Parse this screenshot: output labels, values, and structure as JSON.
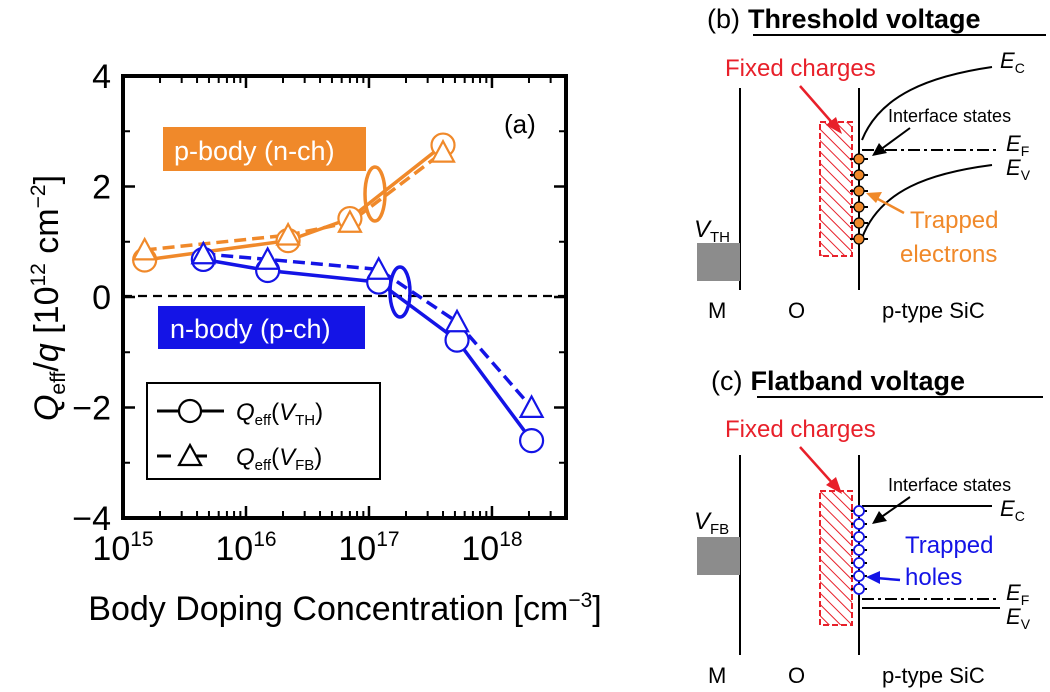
{
  "colors": {
    "orange": "#F0892A",
    "blue": "#1414E6",
    "red": "#E8202A",
    "gray": "#8C8C8C",
    "black": "#000000"
  },
  "chart_data": {
    "type": "line",
    "panel_label": "(a)",
    "xlabel": "Body Doping Concentration [cm",
    "xlabel_sup": "−3",
    "xlabel_end": "]",
    "ylabel": {
      "q": "Q",
      "eff": "eff",
      "slash": "/",
      "qq": "q",
      "units": " [10",
      "exp": "12",
      "cm": " cm",
      "cmexp": "−2",
      "close": "]"
    },
    "x_scale": "log",
    "xlim": [
      1000000000000000.0,
      4e+18
    ],
    "ylim": [
      -4,
      4
    ],
    "x_ticks": [
      {
        "value": 1000000000000000.0,
        "base": "10",
        "exp": "15"
      },
      {
        "value": 1e+16,
        "base": "10",
        "exp": "16"
      },
      {
        "value": 1e+17,
        "base": "10",
        "exp": "17"
      },
      {
        "value": 1e+18,
        "base": "10",
        "exp": "18"
      }
    ],
    "y_ticks": [
      {
        "value": 4,
        "label": "4"
      },
      {
        "value": 2,
        "label": "2"
      },
      {
        "value": 0,
        "label": "0"
      },
      {
        "value": -2,
        "label": "−2"
      },
      {
        "value": -4,
        "label": "−4"
      }
    ],
    "zero_line": true,
    "series": [
      {
        "name": "p-body Qeff(VTH)",
        "group": "p-body",
        "style": "solid",
        "marker": "circle",
        "x": [
          1500000000000000.0,
          2.2e+16,
          7e+16,
          4e+17
        ],
        "y": [
          0.67,
          1.02,
          1.42,
          2.75
        ]
      },
      {
        "name": "p-body Qeff(VFB)",
        "group": "p-body",
        "style": "dashed",
        "marker": "triangle",
        "x": [
          1500000000000000.0,
          2.2e+16,
          7e+16,
          4e+17
        ],
        "y": [
          0.85,
          1.12,
          1.35,
          2.62
        ]
      },
      {
        "name": "n-body Qeff(VTH)",
        "group": "n-body",
        "style": "solid",
        "marker": "circle",
        "x": [
          4500000000000000.0,
          1.5e+16,
          1.2e+17,
          5.2e+17,
          2.1e+18
        ],
        "y": [
          0.68,
          0.48,
          0.27,
          -0.78,
          -2.6
        ]
      },
      {
        "name": "n-body Qeff(VFB)",
        "group": "n-body",
        "style": "dashed",
        "marker": "triangle",
        "x": [
          4500000000000000.0,
          1.5e+16,
          1.2e+17,
          5.2e+17,
          2.1e+18
        ],
        "y": [
          0.78,
          0.68,
          0.5,
          -0.45,
          -2.0
        ]
      }
    ],
    "labels": {
      "p_body": "p-body (n-ch)",
      "n_body": "n-body (p-ch)"
    },
    "legend": {
      "placement": "bottom-left",
      "entries": [
        {
          "q": "Q",
          "sub": "eff",
          "open": "(",
          "v": "V",
          "vsub": "TH",
          "close": ")"
        },
        {
          "q": "Q",
          "sub": "eff",
          "open": "(",
          "v": "V",
          "vsub": "FB",
          "close": ")"
        }
      ]
    }
  },
  "diagram_b": {
    "label": "(b)",
    "title": "Threshold voltage",
    "fixed_charges": "Fixed charges",
    "ec": "E",
    "ec_sub": "C",
    "ef": "E",
    "ef_sub": "F",
    "ev": "E",
    "ev_sub": "V",
    "interface_states": "Interface states",
    "trapped_1": "Trapped",
    "trapped_2": "electrons",
    "v_label": "V",
    "v_sub": "TH",
    "m": "M",
    "o": "O",
    "sic": "p-type SiC"
  },
  "diagram_c": {
    "label": "(c)",
    "title": "Flatband voltage",
    "fixed_charges": "Fixed charges",
    "ec": "E",
    "ec_sub": "C",
    "ef": "E",
    "ef_sub": "F",
    "ev": "E",
    "ev_sub": "V",
    "interface_states": "Interface states",
    "trapped_1": "Trapped",
    "trapped_2": "holes",
    "v_label": "V",
    "v_sub": "FB",
    "m": "M",
    "o": "O",
    "sic": "p-type SiC"
  }
}
